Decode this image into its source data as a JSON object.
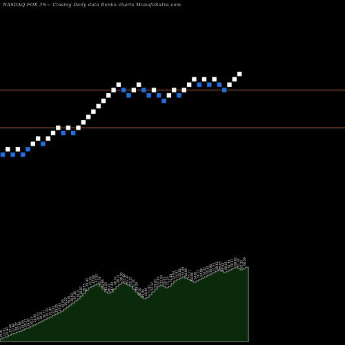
{
  "header": {
    "text": "NASDAQ FOX  3%~  Closing Daily data  Renko  charts MunafaSutra.com"
  },
  "colors": {
    "background": "#000000",
    "brick_up": "#ffffff",
    "brick_down": "#1e6fe0",
    "brick_border": "#000000",
    "reference_line": "#b4643c",
    "volume_fill": "#0b2a0b",
    "volume_edge": "#ffffff",
    "volume_label": "#e6e6e6"
  },
  "chart_data": [
    {
      "type": "renko",
      "title": "NASDAQ FOX 3%~ Closing Daily data Renko charts MunafaSutra.com",
      "box_size_percent": 3,
      "reference_lines": [
        {
          "level": 10
        },
        {
          "level": 3
        }
      ],
      "bricks": [
        {
          "dir": "down",
          "level": -2
        },
        {
          "dir": "up",
          "level": -1
        },
        {
          "dir": "down",
          "level": -2
        },
        {
          "dir": "up",
          "level": -1
        },
        {
          "dir": "down",
          "level": -2
        },
        {
          "dir": "down",
          "level": -1
        },
        {
          "dir": "up",
          "level": 0
        },
        {
          "dir": "up",
          "level": 1
        },
        {
          "dir": "down",
          "level": 0
        },
        {
          "dir": "up",
          "level": 1
        },
        {
          "dir": "up",
          "level": 2
        },
        {
          "dir": "up",
          "level": 3
        },
        {
          "dir": "down",
          "level": 2
        },
        {
          "dir": "up",
          "level": 3
        },
        {
          "dir": "down",
          "level": 2
        },
        {
          "dir": "up",
          "level": 3
        },
        {
          "dir": "up",
          "level": 4
        },
        {
          "dir": "up",
          "level": 5
        },
        {
          "dir": "up",
          "level": 6
        },
        {
          "dir": "up",
          "level": 7
        },
        {
          "dir": "up",
          "level": 8
        },
        {
          "dir": "up",
          "level": 9
        },
        {
          "dir": "up",
          "level": 10
        },
        {
          "dir": "up",
          "level": 11
        },
        {
          "dir": "down",
          "level": 10
        },
        {
          "dir": "down",
          "level": 9
        },
        {
          "dir": "up",
          "level": 10
        },
        {
          "dir": "up",
          "level": 11
        },
        {
          "dir": "down",
          "level": 10
        },
        {
          "dir": "down",
          "level": 9
        },
        {
          "dir": "up",
          "level": 10
        },
        {
          "dir": "down",
          "level": 9
        },
        {
          "dir": "down",
          "level": 8
        },
        {
          "dir": "up",
          "level": 9
        },
        {
          "dir": "up",
          "level": 10
        },
        {
          "dir": "down",
          "level": 9
        },
        {
          "dir": "up",
          "level": 10
        },
        {
          "dir": "up",
          "level": 11
        },
        {
          "dir": "up",
          "level": 12
        },
        {
          "dir": "down",
          "level": 11
        },
        {
          "dir": "up",
          "level": 12
        },
        {
          "dir": "down",
          "level": 11
        },
        {
          "dir": "up",
          "level": 12
        },
        {
          "dir": "down",
          "level": 11
        },
        {
          "dir": "down",
          "level": 10
        },
        {
          "dir": "up",
          "level": 11
        },
        {
          "dir": "up",
          "level": 12
        },
        {
          "dir": "up",
          "level": 13
        }
      ],
      "volume": {
        "bars": [
          4,
          6,
          7,
          9,
          11,
          12,
          14,
          15,
          17,
          19,
          20,
          22,
          24,
          26,
          28,
          30,
          32,
          34,
          36,
          38,
          40,
          42,
          44,
          47,
          50,
          53,
          56,
          59,
          62,
          66,
          70,
          74,
          78,
          80,
          82,
          84,
          80,
          76,
          72,
          70,
          72,
          76,
          80,
          83,
          86,
          84,
          82,
          80,
          76,
          72,
          68,
          64,
          62,
          64,
          68,
          72,
          76,
          80,
          82,
          80,
          78,
          80,
          84,
          88,
          90,
          92,
          94,
          92,
          90,
          88,
          86,
          88,
          90,
          92,
          94,
          96,
          98,
          100,
          102,
          104,
          102,
          100,
          102,
          104,
          106,
          108,
          106,
          104,
          106,
          108
        ],
        "labels": [
          "26.91",
          "27.41",
          "26.92",
          "27.44",
          "27.98",
          "28.27",
          "27.98",
          "28.54",
          "29.11",
          "29.67",
          "30.24",
          "28.95",
          "29.53",
          "30.11",
          "30.71",
          "31.33",
          "31.97",
          "32.61",
          "33.25",
          "33.92",
          "34.59",
          "35.27",
          "35.91",
          "36.63",
          "37.36",
          "38.11",
          "38.87",
          "39.65",
          "40.45",
          "41.26",
          "42.08",
          "42.92",
          "43.78",
          "44.65",
          "45.55",
          "46.47",
          "47.40",
          "48.34",
          "49.31",
          "50.30",
          "51.40",
          "51.37",
          "52.35",
          "51.34",
          "49.29",
          "50.30",
          "48.94",
          "49.96",
          "51.02",
          "52.12",
          "53.20",
          "52.65",
          "51.54",
          "50.03",
          "51.24",
          "52.48",
          "53.64",
          "54.81",
          "55.82",
          "55.09",
          "54.06",
          "53.11",
          "54.06",
          "54.81",
          "56.12",
          "57.08",
          "56.02",
          "55.81",
          "56.90",
          "57.55",
          "58.61",
          "59.05",
          "59.94",
          "60.01",
          "58.33",
          "59.47",
          "60.62",
          "61.18",
          "62.32",
          "60.59"
        ],
        "marker_text": "5"
      }
    }
  ]
}
